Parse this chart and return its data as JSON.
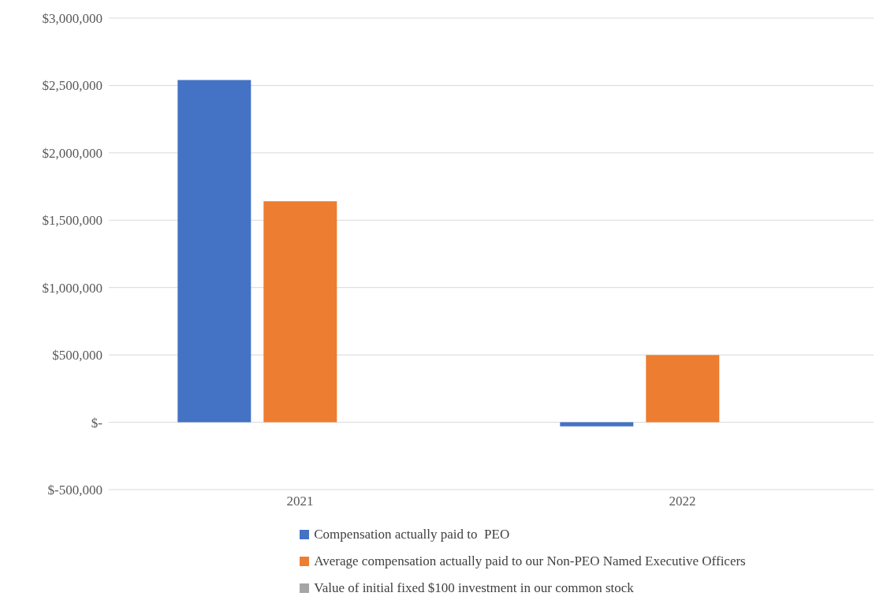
{
  "chart_data": {
    "type": "bar",
    "categories": [
      "2021",
      "2022"
    ],
    "series": [
      {
        "name": "Compensation actually paid to  PEO",
        "color": "#4472c4",
        "values": [
          2540000,
          -30000
        ]
      },
      {
        "name": "Average compensation actually paid to our Non-PEO Named Executive Officers",
        "color": "#ed7d31",
        "values": [
          1640000,
          500000
        ]
      },
      {
        "name": "Value of initial fixed $100 investment in our common stock",
        "color": "#a5a5a5",
        "values": [
          0,
          0
        ]
      }
    ],
    "ylim": [
      -500000,
      3000000
    ],
    "yticks": [
      {
        "value": -500000,
        "label": "$-500,000"
      },
      {
        "value": 0,
        "label": "$-"
      },
      {
        "value": 500000,
        "label": "$500,000"
      },
      {
        "value": 1000000,
        "label": "$1,000,000"
      },
      {
        "value": 1500000,
        "label": "$1,500,000"
      },
      {
        "value": 2000000,
        "label": "$2,000,000"
      },
      {
        "value": 2500000,
        "label": "$2,500,000"
      },
      {
        "value": 3000000,
        "label": "$3,000,000"
      }
    ],
    "grid": "y",
    "legend": "bottom"
  }
}
